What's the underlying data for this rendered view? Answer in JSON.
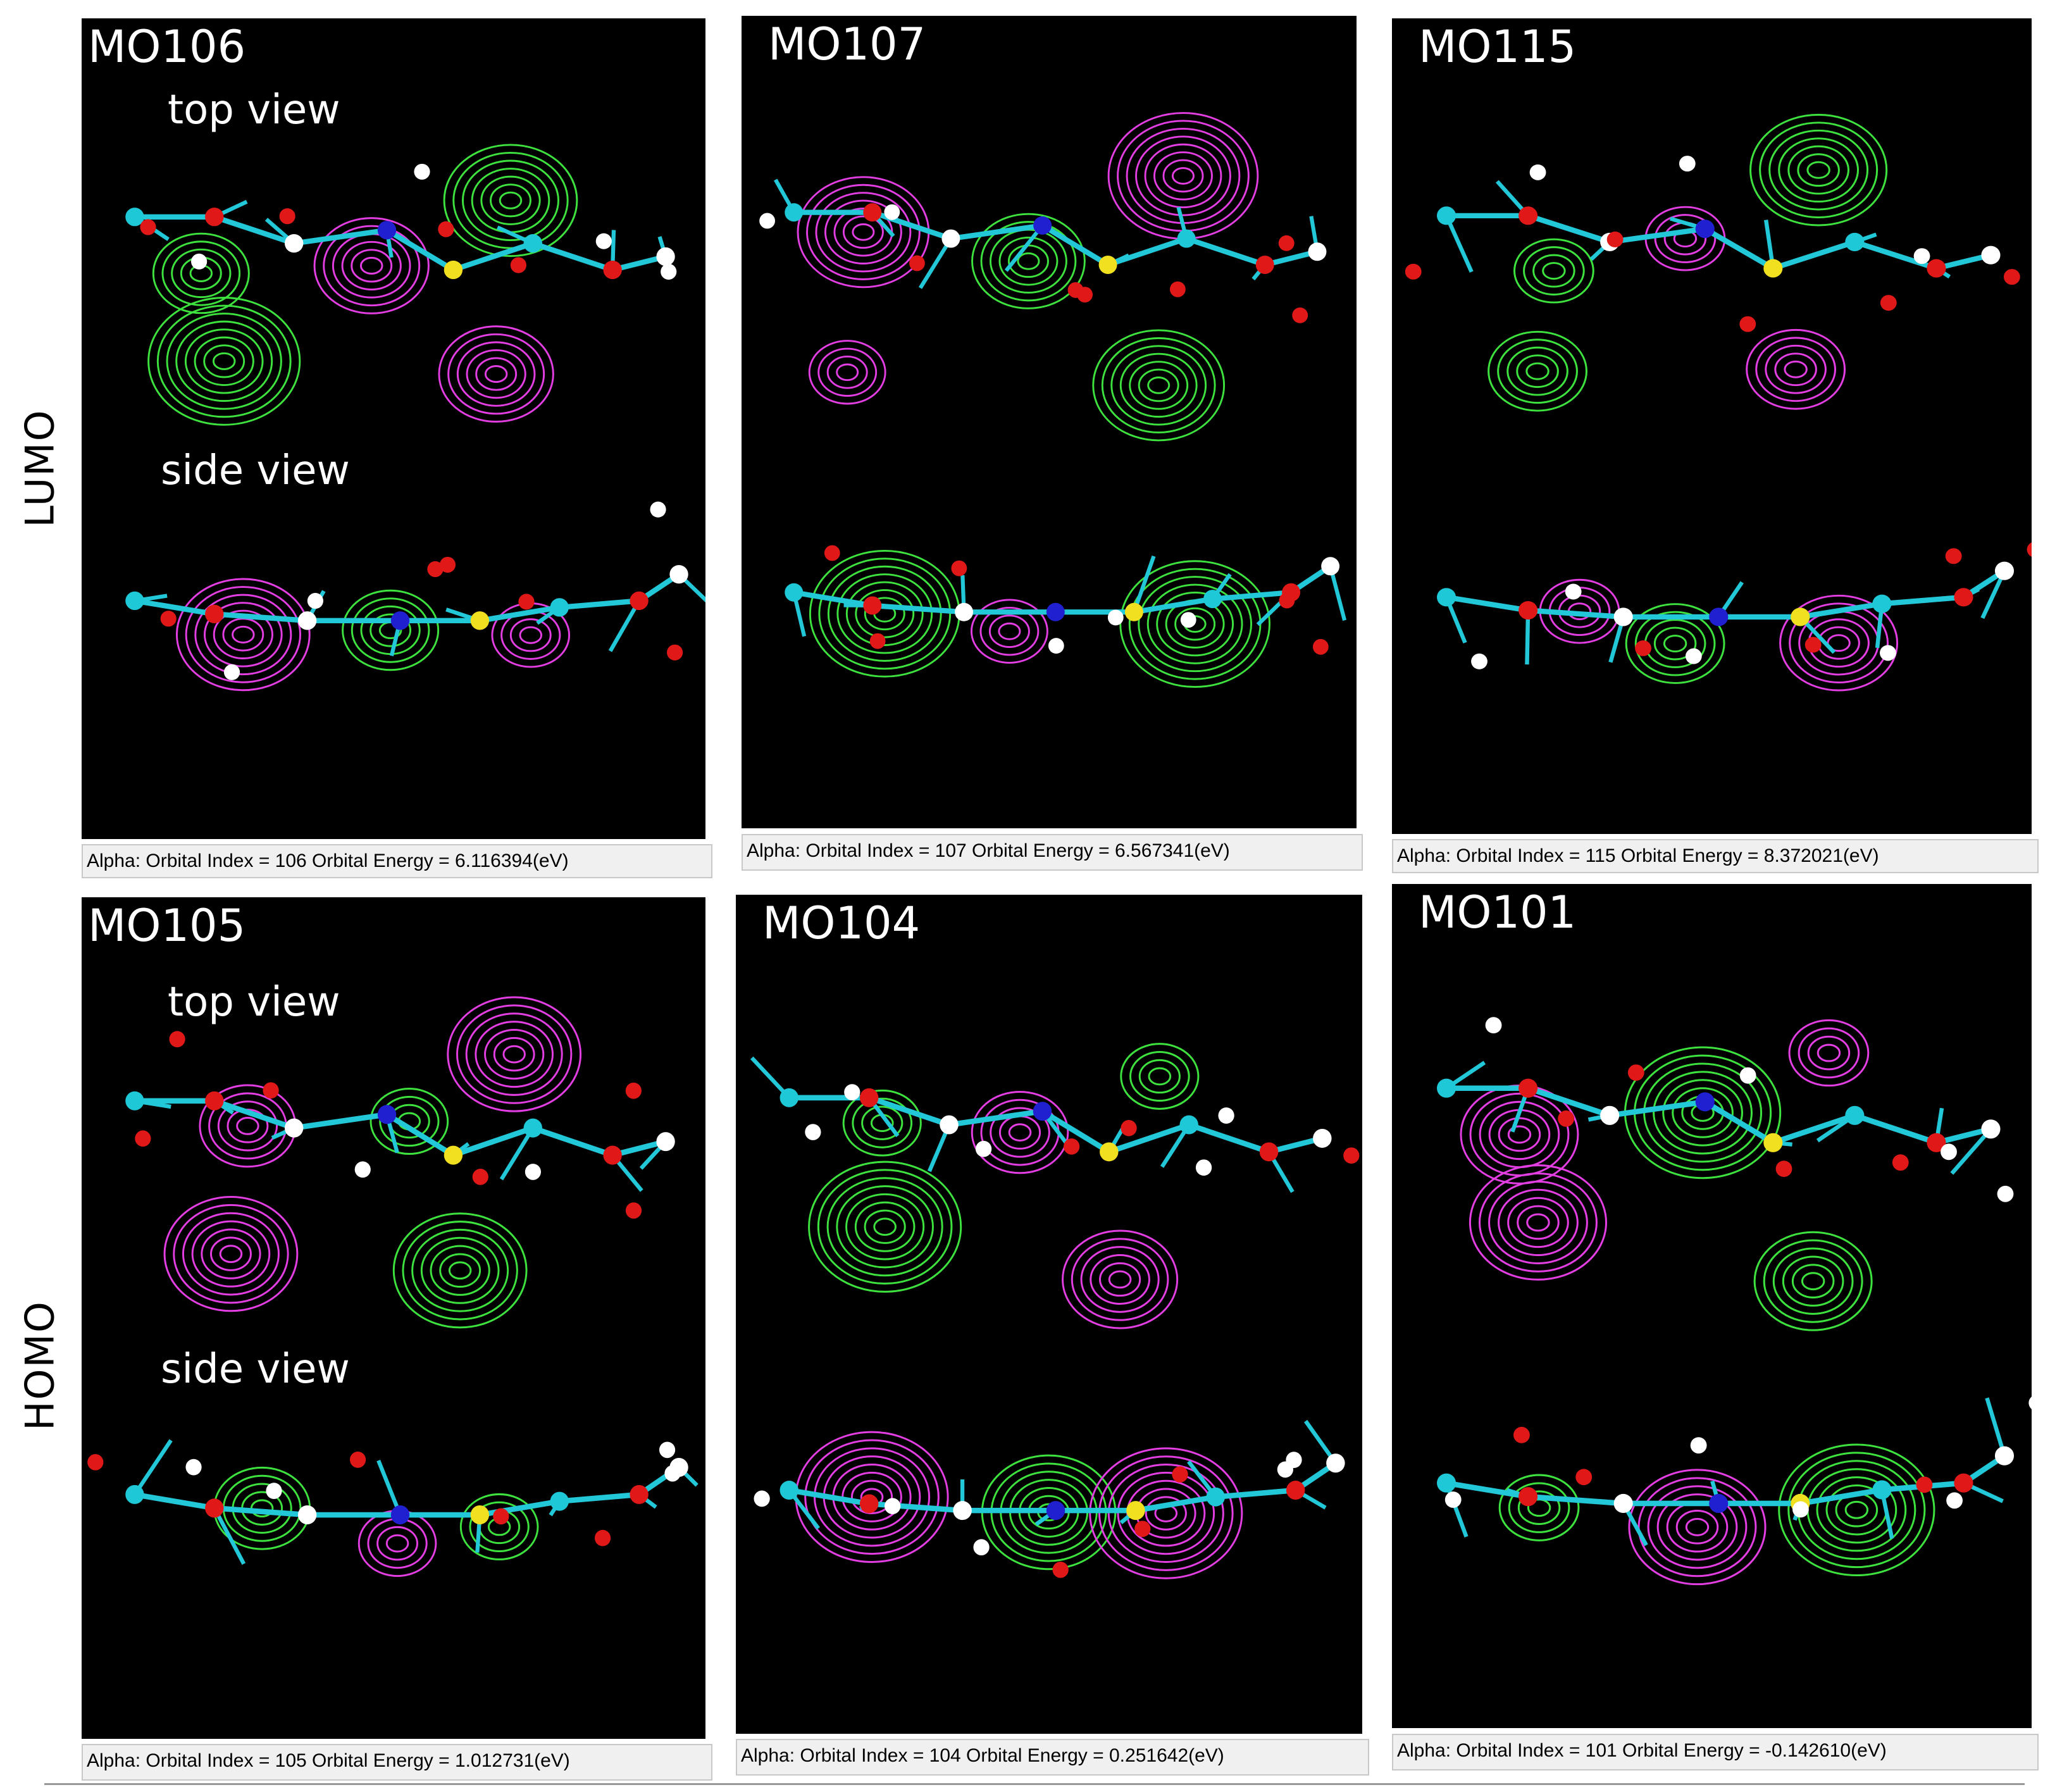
{
  "row_labels": [
    "LUMO",
    "HOMO"
  ],
  "panels": [
    {
      "title": "MO106",
      "top_label": "top view",
      "side_label": "side view",
      "caption": "Alpha: Orbital Index = 106 Orbital Energy = 6.116394(eV)"
    },
    {
      "title": "MO107",
      "caption": "Alpha: Orbital Index = 107 Orbital Energy = 6.567341(eV)"
    },
    {
      "title": "MO115",
      "caption": "Alpha: Orbital Index = 115 Orbital Energy = 8.372021(eV)"
    },
    {
      "title": "MO105",
      "top_label": "top view",
      "side_label": "side view",
      "caption": "Alpha: Orbital Index = 105 Orbital Energy = 1.012731(eV)"
    },
    {
      "title": "MO104",
      "caption": "Alpha: Orbital Index = 104 Orbital Energy = 0.251642(eV)"
    },
    {
      "title": "MO101",
      "caption": "Alpha: Orbital Index = 101 Orbital Energy = -0.142610(eV)"
    }
  ]
}
